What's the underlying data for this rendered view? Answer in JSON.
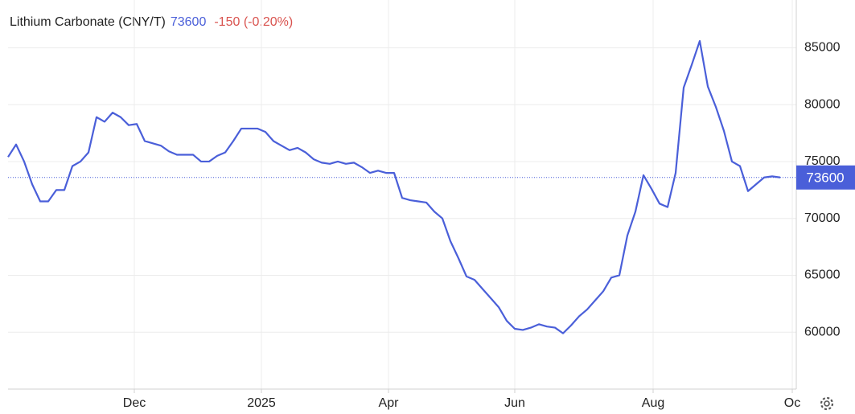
{
  "chart_data": {
    "type": "line",
    "title": "Lithium Carbonate (CNY/T)",
    "price": 73600,
    "change": "-150 (-0.20%)",
    "series": [
      {
        "name": "Lithium Carbonate",
        "color": "#4a5fd9",
        "values": [
          75400,
          76500,
          75000,
          73000,
          71500,
          71500,
          72500,
          72500,
          74600,
          75000,
          75800,
          78900,
          78500,
          79300,
          78900,
          78200,
          78300,
          76800,
          76600,
          76400,
          75900,
          75600,
          75600,
          75600,
          75000,
          75000,
          75500,
          75800,
          76800,
          77900,
          77900,
          77900,
          77600,
          76800,
          76400,
          76000,
          76200,
          75800,
          75200,
          74900,
          74800,
          75000,
          74800,
          74900,
          74500,
          74000,
          74200,
          74000,
          74000,
          71800,
          71600,
          71500,
          71400,
          70600,
          70000,
          68000,
          66500,
          64900,
          64600,
          63800,
          63000,
          62200,
          61000,
          60300,
          60200,
          60400,
          60700,
          60500,
          60400,
          59900,
          60600,
          61400,
          62000,
          62800,
          63600,
          64800,
          65000,
          68500,
          70600,
          73800,
          72600,
          71300,
          71000,
          74000,
          81500,
          83500,
          85600,
          81600,
          79800,
          77700,
          75000,
          74600,
          72400,
          73000,
          73600,
          73700,
          73600
        ]
      }
    ],
    "last_value": 73600,
    "xlim": [
      0,
      98
    ],
    "xticks": [
      {
        "value": 15.7,
        "label": "Dec"
      },
      {
        "value": 31.5,
        "label": "2025"
      },
      {
        "value": 47.3,
        "label": "Apr"
      },
      {
        "value": 63,
        "label": "Jun"
      },
      {
        "value": 80.2,
        "label": "Aug"
      },
      {
        "value": 97.5,
        "label": "Oc"
      }
    ],
    "ylim": [
      55000,
      89200
    ],
    "yticks": [
      60000,
      65000,
      70000,
      75000,
      80000,
      85000
    ],
    "grid": true
  }
}
